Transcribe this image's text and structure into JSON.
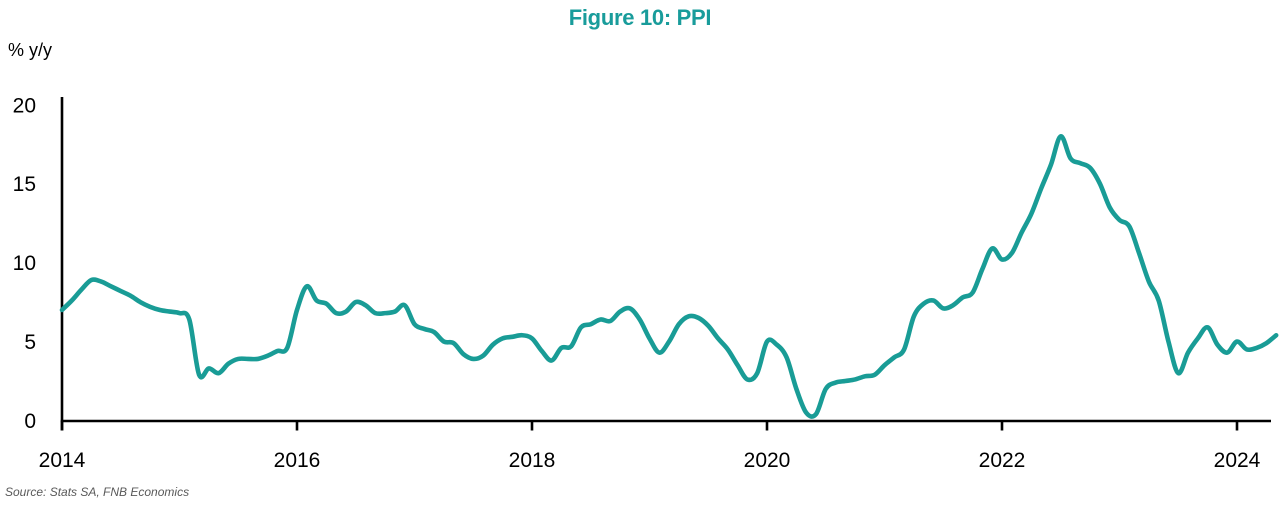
{
  "figure": {
    "title": "Figure 10: PPI",
    "y_axis_label": "% y/y",
    "source": "Source: Stats SA, FNB Economics"
  },
  "colors": {
    "line": "#199C96",
    "title": "#199C9B",
    "axis": "#000000",
    "tick_text": "#000000",
    "source_text": "#595959"
  },
  "chart_data": {
    "type": "line",
    "title": "Figure 10: PPI",
    "ylabel": "% y/y",
    "xlabel": "",
    "source": "Source: Stats SA, FNB Economics",
    "grid": false,
    "legend": "none",
    "ylim": [
      0,
      20
    ],
    "y_ticks": [
      0,
      5,
      10,
      15,
      20
    ],
    "x_ticks": [
      2014,
      2016,
      2018,
      2020,
      2022,
      2024
    ],
    "series": [
      {
        "name": "PPI (% y/y)",
        "frequency": "monthly",
        "start": "2014-01",
        "end": "2024-05",
        "values": [
          7.0,
          7.6,
          8.3,
          8.9,
          8.8,
          8.5,
          8.2,
          7.9,
          7.5,
          7.2,
          7.0,
          6.9,
          6.8,
          6.4,
          2.9,
          3.3,
          3.0,
          3.6,
          3.9,
          3.9,
          3.9,
          4.1,
          4.4,
          4.6,
          7.0,
          8.5,
          7.6,
          7.4,
          6.8,
          6.9,
          7.5,
          7.3,
          6.8,
          6.8,
          6.9,
          7.3,
          6.1,
          5.8,
          5.6,
          5.0,
          4.9,
          4.2,
          3.9,
          4.1,
          4.8,
          5.2,
          5.3,
          5.4,
          5.2,
          4.4,
          3.8,
          4.6,
          4.7,
          5.9,
          6.1,
          6.4,
          6.3,
          6.9,
          7.1,
          6.4,
          5.2,
          4.3,
          5.0,
          6.1,
          6.6,
          6.5,
          6.0,
          5.2,
          4.5,
          3.5,
          2.6,
          3.0,
          5.0,
          4.8,
          4.0,
          2.0,
          0.5,
          0.4,
          2.0,
          2.4,
          2.5,
          2.6,
          2.8,
          2.9,
          3.5,
          4.0,
          4.5,
          6.6,
          7.4,
          7.6,
          7.1,
          7.3,
          7.8,
          8.1,
          9.6,
          10.9,
          10.2,
          10.6,
          11.9,
          13.1,
          14.7,
          16.2,
          18.0,
          16.6,
          16.3,
          16.0,
          15.0,
          13.5,
          12.7,
          12.3,
          10.6,
          8.8,
          7.6,
          5.0,
          3.0,
          4.3,
          5.2,
          5.9,
          4.8,
          4.3,
          5.0,
          4.5,
          4.6,
          4.9,
          5.4
        ]
      }
    ]
  }
}
